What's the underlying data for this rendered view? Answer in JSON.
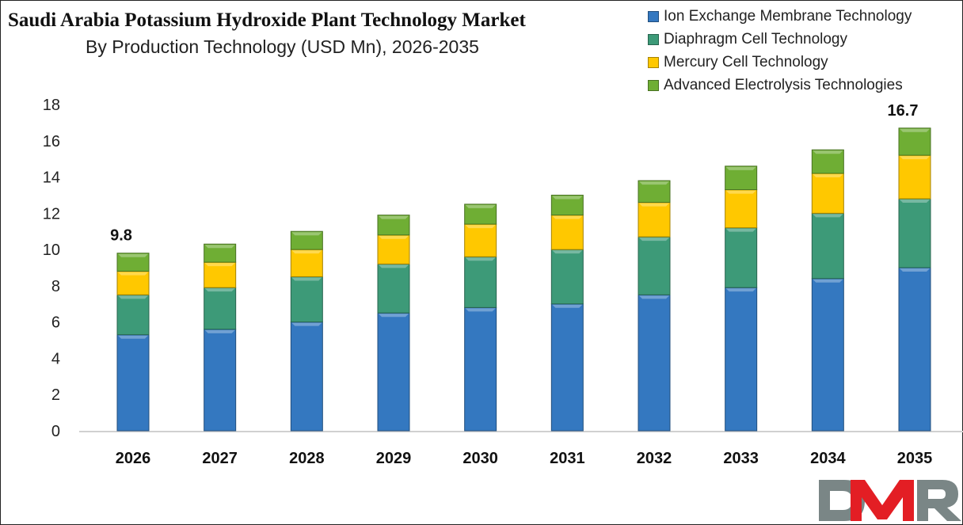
{
  "chart_data": {
    "type": "bar",
    "stacked": true,
    "title": "Saudi Arabia Potassium Hydroxide Plant Technology Market",
    "subtitle": "By Production Technology (USD Mn), 2026-2035",
    "xlabel": "",
    "ylabel": "",
    "ylim": [
      0,
      18
    ],
    "yticks": [
      0,
      2,
      4,
      6,
      8,
      10,
      12,
      14,
      16,
      18
    ],
    "grid": false,
    "legend_position": "top-right",
    "categories": [
      "2026",
      "2027",
      "2028",
      "2029",
      "2030",
      "2031",
      "2032",
      "2033",
      "2034",
      "2035"
    ],
    "series": [
      {
        "name": "Ion Exchange Membrane Technology",
        "color": "#3478c0",
        "values": [
          5.3,
          5.6,
          6.0,
          6.5,
          6.8,
          7.0,
          7.5,
          7.9,
          8.4,
          9.0
        ]
      },
      {
        "name": "Diaphragm Cell Technology",
        "color": "#3d9a78",
        "values": [
          2.2,
          2.3,
          2.5,
          2.7,
          2.8,
          3.0,
          3.2,
          3.3,
          3.6,
          3.8
        ]
      },
      {
        "name": "Mercury Cell Technology",
        "color": "#ffc800",
        "values": [
          1.3,
          1.4,
          1.5,
          1.6,
          1.8,
          1.9,
          1.9,
          2.1,
          2.2,
          2.4
        ]
      },
      {
        "name": "Advanced Electrolysis Technologies",
        "color": "#6fae34",
        "values": [
          1.0,
          1.0,
          1.0,
          1.1,
          1.1,
          1.1,
          1.2,
          1.3,
          1.3,
          1.5
        ]
      }
    ],
    "annotations": [
      {
        "category": "2026",
        "text": "9.8"
      },
      {
        "category": "2035",
        "text": "16.7"
      }
    ]
  },
  "logo": {
    "text": "DMR",
    "colors": [
      "#7a8686",
      "#e31e24",
      "#7a8686"
    ]
  }
}
